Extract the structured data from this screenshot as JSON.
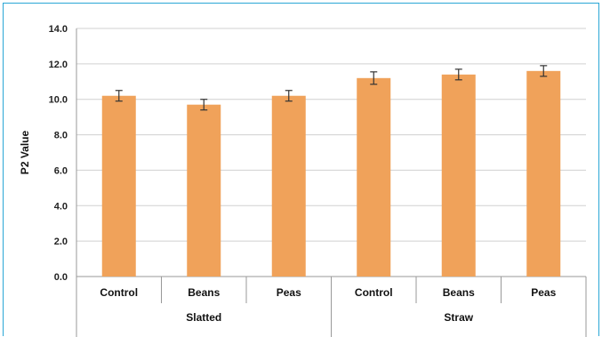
{
  "chart_data": {
    "type": "bar",
    "title": "",
    "xlabel": "",
    "ylabel": "P2 Value",
    "ylim": [
      0,
      14
    ],
    "yticks": [
      "0.0",
      "2.0",
      "4.0",
      "6.0",
      "8.0",
      "10.0",
      "12.0",
      "14.0"
    ],
    "grid": true,
    "legend": "none",
    "bar_color": "#f0a25a",
    "errorbar_color": "#333333",
    "categories": [
      "Control",
      "Beans",
      "Peas",
      "Control",
      "Beans",
      "Peas"
    ],
    "groups": [
      {
        "label": "Slatted",
        "span": 3
      },
      {
        "label": "Straw",
        "span": 3
      }
    ],
    "values": [
      10.2,
      9.7,
      10.2,
      11.2,
      11.4,
      11.6
    ],
    "errors": [
      0.3,
      0.3,
      0.3,
      0.35,
      0.3,
      0.3
    ]
  }
}
